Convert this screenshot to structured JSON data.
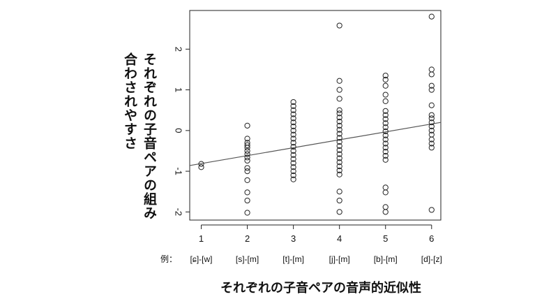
{
  "chart_data": {
    "type": "scatter",
    "xlabel": "それぞれの子音ペアの音声的近似性",
    "ylabel": "それぞれの子音ペアの組み合わされやすさ",
    "xlim": [
      0.75,
      6.2
    ],
    "ylim": [
      -2.2,
      2.95
    ],
    "x_ticks": [
      1,
      2,
      3,
      4,
      5,
      6
    ],
    "y_ticks": [
      -2,
      -1,
      0,
      1,
      2
    ],
    "example_prefix": "例：",
    "examples": [
      "[ɕ]-[w]",
      "[s]-[m]",
      "[t]-[m]",
      "[j]-[m]",
      "[b]-[m]",
      "[d]-[z]"
    ],
    "grid": false,
    "regression_line": {
      "x": [
        0.75,
        6.2
      ],
      "y": [
        -0.86,
        0.2
      ]
    },
    "series": [
      {
        "points": [
          [
            1,
            -0.82
          ],
          [
            1,
            -0.9
          ],
          [
            2,
            0.12
          ],
          [
            2,
            -0.2
          ],
          [
            2,
            -0.3
          ],
          [
            2,
            -0.36
          ],
          [
            2,
            -0.42
          ],
          [
            2,
            -0.5
          ],
          [
            2,
            -0.58
          ],
          [
            2,
            -0.66
          ],
          [
            2,
            -0.74
          ],
          [
            2,
            -0.92
          ],
          [
            2,
            -1.0
          ],
          [
            2,
            -1.22
          ],
          [
            2,
            -1.52
          ],
          [
            2,
            -1.72
          ],
          [
            2,
            -2.02
          ],
          [
            3,
            0.7
          ],
          [
            3,
            0.6
          ],
          [
            3,
            0.5
          ],
          [
            3,
            0.4
          ],
          [
            3,
            0.3
          ],
          [
            3,
            0.2
          ],
          [
            3,
            0.1
          ],
          [
            3,
            0.0
          ],
          [
            3,
            -0.1
          ],
          [
            3,
            -0.2
          ],
          [
            3,
            -0.3
          ],
          [
            3,
            -0.4
          ],
          [
            3,
            -0.5
          ],
          [
            3,
            -0.6
          ],
          [
            3,
            -0.7
          ],
          [
            3,
            -0.8
          ],
          [
            3,
            -0.9
          ],
          [
            3,
            -1.0
          ],
          [
            3,
            -1.1
          ],
          [
            3,
            -1.2
          ],
          [
            4,
            2.58
          ],
          [
            4,
            1.22
          ],
          [
            4,
            1.0
          ],
          [
            4,
            0.78
          ],
          [
            4,
            0.5
          ],
          [
            4,
            0.42
          ],
          [
            4,
            0.32
          ],
          [
            4,
            0.22
          ],
          [
            4,
            0.12
          ],
          [
            4,
            0.02
          ],
          [
            4,
            -0.08
          ],
          [
            4,
            -0.18
          ],
          [
            4,
            -0.28
          ],
          [
            4,
            -0.38
          ],
          [
            4,
            -0.48
          ],
          [
            4,
            -0.58
          ],
          [
            4,
            -0.68
          ],
          [
            4,
            -0.78
          ],
          [
            4,
            -0.88
          ],
          [
            4,
            -0.98
          ],
          [
            4,
            -1.08
          ],
          [
            4,
            -1.5
          ],
          [
            4,
            -1.72
          ],
          [
            4,
            -2.0
          ],
          [
            5,
            1.35
          ],
          [
            5,
            1.25
          ],
          [
            5,
            1.1
          ],
          [
            5,
            0.88
          ],
          [
            5,
            0.72
          ],
          [
            5,
            0.48
          ],
          [
            5,
            0.38
          ],
          [
            5,
            0.28
          ],
          [
            5,
            0.18
          ],
          [
            5,
            0.08
          ],
          [
            5,
            -0.02
          ],
          [
            5,
            -0.12
          ],
          [
            5,
            -0.22
          ],
          [
            5,
            -0.32
          ],
          [
            5,
            -0.42
          ],
          [
            5,
            -0.52
          ],
          [
            5,
            -0.62
          ],
          [
            5,
            -0.72
          ],
          [
            5,
            -1.4
          ],
          [
            5,
            -1.52
          ],
          [
            5,
            -1.88
          ],
          [
            5,
            -2.0
          ],
          [
            6,
            2.8
          ],
          [
            6,
            1.5
          ],
          [
            6,
            1.38
          ],
          [
            6,
            1.1
          ],
          [
            6,
            1.0
          ],
          [
            6,
            0.62
          ],
          [
            6,
            0.38
          ],
          [
            6,
            0.3
          ],
          [
            6,
            0.2
          ],
          [
            6,
            0.1
          ],
          [
            6,
            0.0
          ],
          [
            6,
            -0.1
          ],
          [
            6,
            -0.22
          ],
          [
            6,
            -0.32
          ],
          [
            6,
            -0.42
          ],
          [
            6,
            -1.95
          ]
        ]
      }
    ]
  }
}
